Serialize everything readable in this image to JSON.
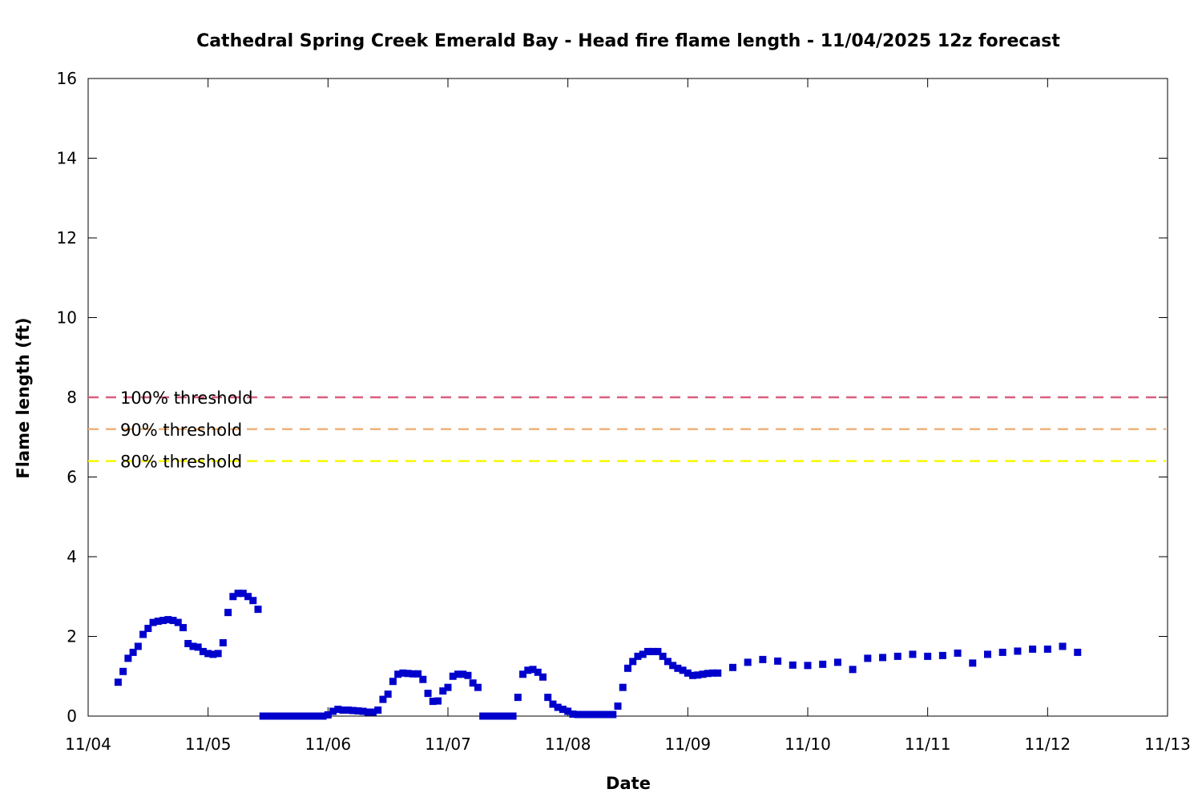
{
  "chart_data": {
    "type": "scatter",
    "title": "Cathedral Spring Creek Emerald Bay - Head fire flame length - 11/04/2025 12z forecast",
    "xlabel": "Date",
    "ylabel": "Flame length (ft)",
    "xlim": [
      "2025-11-04T00:00",
      "2025-11-13T00:00"
    ],
    "ylim": [
      0,
      16
    ],
    "y_ticks": [
      0,
      2,
      4,
      6,
      8,
      10,
      12,
      14,
      16
    ],
    "x_ticks": [
      "11/04",
      "11/05",
      "11/06",
      "11/07",
      "11/08",
      "11/09",
      "11/10",
      "11/11",
      "11/12",
      "11/13"
    ],
    "grid": false,
    "marker_color": "#0000cc",
    "thresholds": [
      {
        "name": "100% threshold",
        "value": 8.0,
        "color": "#d95f7f"
      },
      {
        "name": "90% threshold",
        "value": 7.2,
        "color": "#f0b27a"
      },
      {
        "name": "80% threshold",
        "value": 6.4,
        "color": "#f7f700"
      }
    ],
    "series": [
      {
        "points": [
          [
            "2025-11-04T06:00",
            0.85
          ],
          [
            "2025-11-04T07:00",
            1.12
          ],
          [
            "2025-11-04T08:00",
            1.45
          ],
          [
            "2025-11-04T09:00",
            1.6
          ],
          [
            "2025-11-04T10:00",
            1.75
          ],
          [
            "2025-11-04T11:00",
            2.05
          ],
          [
            "2025-11-04T12:00",
            2.2
          ],
          [
            "2025-11-04T13:00",
            2.35
          ],
          [
            "2025-11-04T14:00",
            2.38
          ],
          [
            "2025-11-04T15:00",
            2.4
          ],
          [
            "2025-11-04T16:00",
            2.42
          ],
          [
            "2025-11-04T17:00",
            2.4
          ],
          [
            "2025-11-04T18:00",
            2.35
          ],
          [
            "2025-11-04T19:00",
            2.22
          ],
          [
            "2025-11-04T20:00",
            1.82
          ],
          [
            "2025-11-04T21:00",
            1.75
          ],
          [
            "2025-11-04T22:00",
            1.73
          ],
          [
            "2025-11-04T23:00",
            1.62
          ],
          [
            "2025-11-05T00:00",
            1.57
          ],
          [
            "2025-11-05T01:00",
            1.55
          ],
          [
            "2025-11-05T02:00",
            1.57
          ],
          [
            "2025-11-05T03:00",
            1.84
          ],
          [
            "2025-11-05T04:00",
            2.6
          ],
          [
            "2025-11-05T05:00",
            3.0
          ],
          [
            "2025-11-05T06:00",
            3.08
          ],
          [
            "2025-11-05T07:00",
            3.08
          ],
          [
            "2025-11-05T08:00",
            3.0
          ],
          [
            "2025-11-05T09:00",
            2.9
          ],
          [
            "2025-11-05T10:00",
            2.68
          ],
          [
            "2025-11-05T11:00",
            0.0
          ],
          [
            "2025-11-05T12:00",
            0.0
          ],
          [
            "2025-11-05T13:00",
            0.0
          ],
          [
            "2025-11-05T14:00",
            0.0
          ],
          [
            "2025-11-05T15:00",
            0.0
          ],
          [
            "2025-11-05T16:00",
            0.0
          ],
          [
            "2025-11-05T17:00",
            0.0
          ],
          [
            "2025-11-05T18:00",
            0.0
          ],
          [
            "2025-11-05T19:00",
            0.0
          ],
          [
            "2025-11-05T20:00",
            0.0
          ],
          [
            "2025-11-05T21:00",
            0.0
          ],
          [
            "2025-11-05T22:00",
            0.0
          ],
          [
            "2025-11-05T23:00",
            0.0
          ],
          [
            "2025-11-06T00:00",
            0.03
          ],
          [
            "2025-11-06T01:00",
            0.12
          ],
          [
            "2025-11-06T02:00",
            0.17
          ],
          [
            "2025-11-06T03:00",
            0.15
          ],
          [
            "2025-11-06T04:00",
            0.15
          ],
          [
            "2025-11-06T05:00",
            0.14
          ],
          [
            "2025-11-06T06:00",
            0.13
          ],
          [
            "2025-11-06T07:00",
            0.12
          ],
          [
            "2025-11-06T08:00",
            0.1
          ],
          [
            "2025-11-06T09:00",
            0.1
          ],
          [
            "2025-11-06T10:00",
            0.15
          ],
          [
            "2025-11-06T11:00",
            0.42
          ],
          [
            "2025-11-06T12:00",
            0.55
          ],
          [
            "2025-11-06T13:00",
            0.87
          ],
          [
            "2025-11-06T14:00",
            1.05
          ],
          [
            "2025-11-06T15:00",
            1.08
          ],
          [
            "2025-11-06T16:00",
            1.07
          ],
          [
            "2025-11-06T17:00",
            1.06
          ],
          [
            "2025-11-06T18:00",
            1.06
          ],
          [
            "2025-11-06T19:00",
            0.92
          ],
          [
            "2025-11-06T20:00",
            0.57
          ],
          [
            "2025-11-06T21:00",
            0.37
          ],
          [
            "2025-11-06T22:00",
            0.38
          ],
          [
            "2025-11-06T23:00",
            0.63
          ],
          [
            "2025-11-07T00:00",
            0.72
          ],
          [
            "2025-11-07T01:00",
            1.0
          ],
          [
            "2025-11-07T02:00",
            1.05
          ],
          [
            "2025-11-07T03:00",
            1.05
          ],
          [
            "2025-11-07T04:00",
            1.02
          ],
          [
            "2025-11-07T05:00",
            0.83
          ],
          [
            "2025-11-07T06:00",
            0.72
          ],
          [
            "2025-11-07T07:00",
            0.0
          ],
          [
            "2025-11-07T08:00",
            0.0
          ],
          [
            "2025-11-07T09:00",
            0.0
          ],
          [
            "2025-11-07T10:00",
            0.0
          ],
          [
            "2025-11-07T11:00",
            0.0
          ],
          [
            "2025-11-07T12:00",
            0.0
          ],
          [
            "2025-11-07T13:00",
            0.0
          ],
          [
            "2025-11-07T14:00",
            0.47
          ],
          [
            "2025-11-07T15:00",
            1.05
          ],
          [
            "2025-11-07T16:00",
            1.15
          ],
          [
            "2025-11-07T17:00",
            1.17
          ],
          [
            "2025-11-07T18:00",
            1.1
          ],
          [
            "2025-11-07T19:00",
            0.98
          ],
          [
            "2025-11-07T20:00",
            0.47
          ],
          [
            "2025-11-07T21:00",
            0.3
          ],
          [
            "2025-11-07T22:00",
            0.22
          ],
          [
            "2025-11-07T23:00",
            0.17
          ],
          [
            "2025-11-08T00:00",
            0.12
          ],
          [
            "2025-11-08T01:00",
            0.05
          ],
          [
            "2025-11-08T02:00",
            0.04
          ],
          [
            "2025-11-08T03:00",
            0.04
          ],
          [
            "2025-11-08T04:00",
            0.04
          ],
          [
            "2025-11-08T05:00",
            0.04
          ],
          [
            "2025-11-08T06:00",
            0.04
          ],
          [
            "2025-11-08T07:00",
            0.04
          ],
          [
            "2025-11-08T08:00",
            0.04
          ],
          [
            "2025-11-08T09:00",
            0.04
          ],
          [
            "2025-11-08T10:00",
            0.25
          ],
          [
            "2025-11-08T11:00",
            0.72
          ],
          [
            "2025-11-08T12:00",
            1.2
          ],
          [
            "2025-11-08T13:00",
            1.37
          ],
          [
            "2025-11-08T14:00",
            1.5
          ],
          [
            "2025-11-08T15:00",
            1.55
          ],
          [
            "2025-11-08T16:00",
            1.62
          ],
          [
            "2025-11-08T17:00",
            1.62
          ],
          [
            "2025-11-08T18:00",
            1.62
          ],
          [
            "2025-11-08T19:00",
            1.5
          ],
          [
            "2025-11-08T20:00",
            1.37
          ],
          [
            "2025-11-08T21:00",
            1.27
          ],
          [
            "2025-11-08T22:00",
            1.2
          ],
          [
            "2025-11-08T23:00",
            1.15
          ],
          [
            "2025-11-09T00:00",
            1.08
          ],
          [
            "2025-11-09T01:00",
            1.02
          ],
          [
            "2025-11-09T02:00",
            1.03
          ],
          [
            "2025-11-09T03:00",
            1.05
          ],
          [
            "2025-11-09T04:00",
            1.07
          ],
          [
            "2025-11-09T05:00",
            1.08
          ],
          [
            "2025-11-09T06:00",
            1.08
          ],
          [
            "2025-11-09T09:00",
            1.22
          ],
          [
            "2025-11-09T12:00",
            1.35
          ],
          [
            "2025-11-09T15:00",
            1.42
          ],
          [
            "2025-11-09T18:00",
            1.38
          ],
          [
            "2025-11-09T21:00",
            1.28
          ],
          [
            "2025-11-10T00:00",
            1.27
          ],
          [
            "2025-11-10T03:00",
            1.3
          ],
          [
            "2025-11-10T06:00",
            1.35
          ],
          [
            "2025-11-10T09:00",
            1.17
          ],
          [
            "2025-11-10T12:00",
            1.45
          ],
          [
            "2025-11-10T15:00",
            1.47
          ],
          [
            "2025-11-10T18:00",
            1.5
          ],
          [
            "2025-11-10T21:00",
            1.55
          ],
          [
            "2025-11-11T00:00",
            1.5
          ],
          [
            "2025-11-11T03:00",
            1.52
          ],
          [
            "2025-11-11T06:00",
            1.58
          ],
          [
            "2025-11-11T09:00",
            1.33
          ],
          [
            "2025-11-11T12:00",
            1.55
          ],
          [
            "2025-11-11T15:00",
            1.6
          ],
          [
            "2025-11-11T18:00",
            1.63
          ],
          [
            "2025-11-11T21:00",
            1.68
          ],
          [
            "2025-11-12T00:00",
            1.68
          ],
          [
            "2025-11-12T03:00",
            1.75
          ],
          [
            "2025-11-12T06:00",
            1.6
          ]
        ]
      }
    ]
  }
}
